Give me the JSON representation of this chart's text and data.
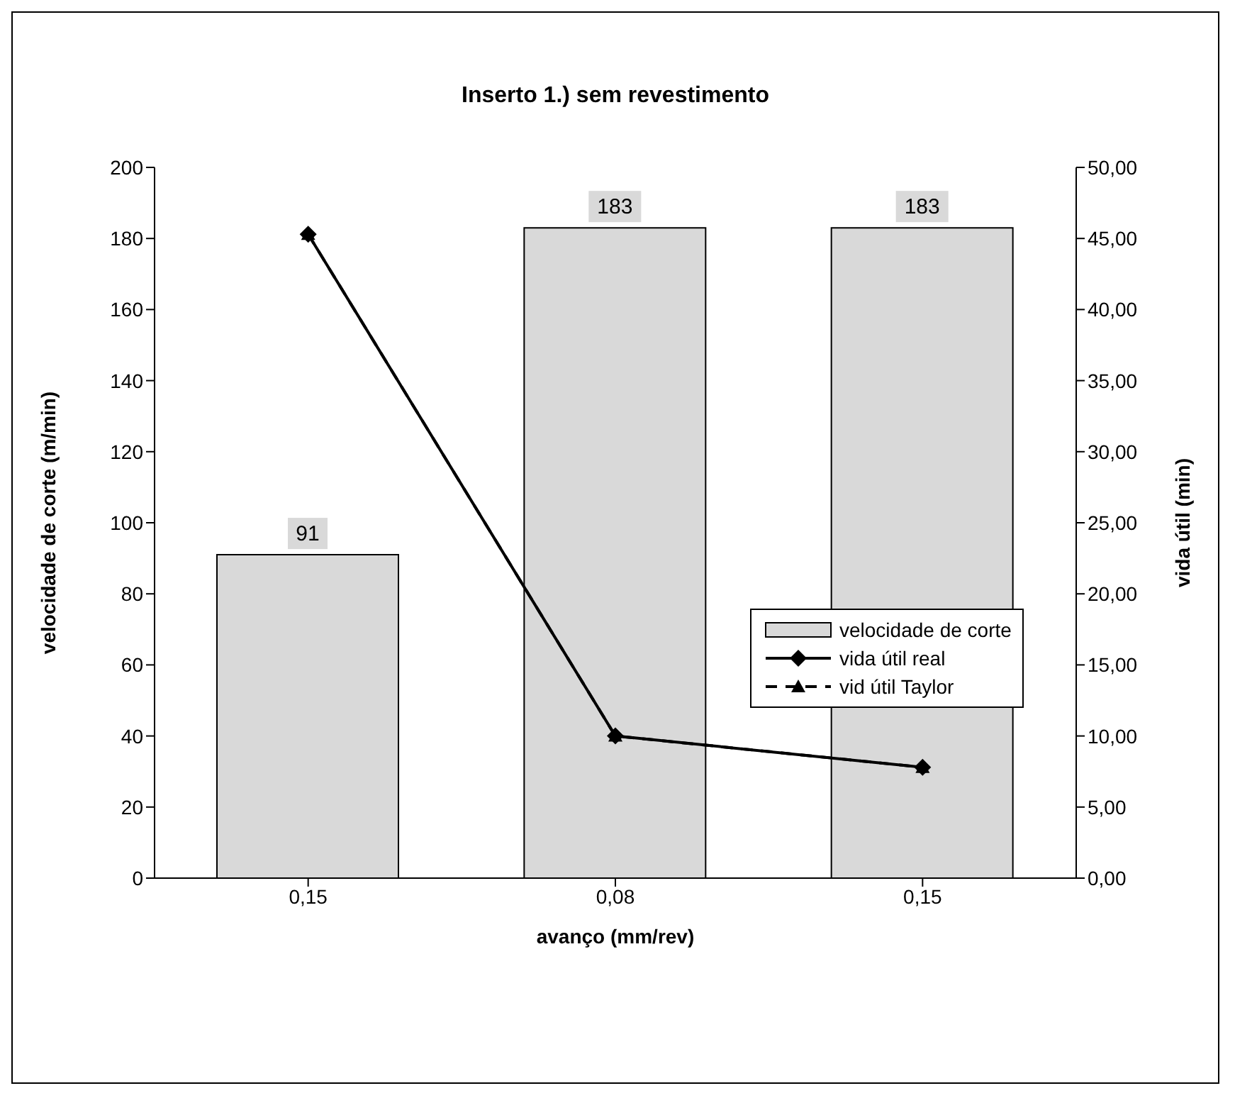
{
  "chart_data": {
    "type": "bar",
    "title": "Inserto 1.) sem revestimento",
    "xlabel": "avanço (mm/rev)",
    "ylabel": "velocidade de corte (m/min)",
    "y2label": "vida útil (min)",
    "categories": [
      "0,15",
      "0,08",
      "0,15"
    ],
    "series": [
      {
        "name": "velocidade de corte",
        "color": "#d9d9d9",
        "values": [
          91,
          183,
          183
        ],
        "data_labels": true
      },
      {
        "name": "vida útil real",
        "type": "line",
        "axis": "y2",
        "color": "#000000",
        "values": [
          45.3,
          10.0,
          7.8
        ],
        "marker": "diamond",
        "line_style": "solid"
      },
      {
        "name": "vid útil Taylor",
        "type": "line",
        "axis": "y2",
        "color": "#000000",
        "values": [
          45.3,
          10.0,
          7.8
        ],
        "marker": "triangle",
        "line_style": "dashed"
      }
    ],
    "ylim": [
      0,
      200
    ],
    "yticks": [
      0,
      20,
      40,
      60,
      80,
      100,
      120,
      140,
      160,
      180,
      200
    ],
    "y2lim": [
      0,
      50
    ],
    "y2ticks": [
      {
        "value": 0,
        "label": "0,00"
      },
      {
        "value": 5,
        "label": "5,00"
      },
      {
        "value": 10,
        "label": "10,00"
      },
      {
        "value": 15,
        "label": "15,00"
      },
      {
        "value": 20,
        "label": "20,00"
      },
      {
        "value": 25,
        "label": "25,00"
      },
      {
        "value": 30,
        "label": "30,00"
      },
      {
        "value": 35,
        "label": "35,00"
      },
      {
        "value": 40,
        "label": "40,00"
      },
      {
        "value": 45,
        "label": "45,00"
      },
      {
        "value": 50,
        "label": "50,00"
      }
    ],
    "legend": "right"
  }
}
